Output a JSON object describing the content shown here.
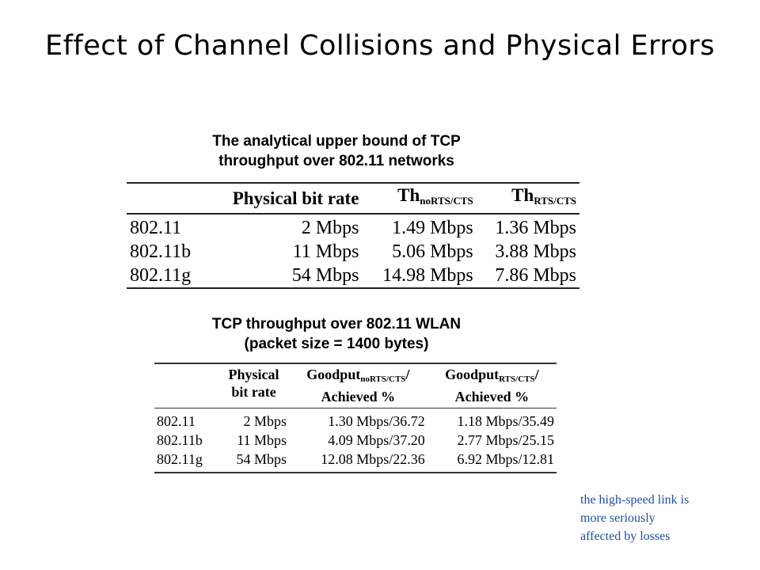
{
  "slide": {
    "title": "Effect of Channel Collisions and Physical Errors"
  },
  "table1": {
    "caption_lines": [
      "The analytical upper bound of TCP",
      "throughput over 802.11 networks"
    ],
    "headers": {
      "rate": "Physical bit rate",
      "th_norts_main": "Th",
      "th_norts_sub": "noRTS/CTS",
      "th_rts_main": "Th",
      "th_rts_sub": "RTS/CTS"
    },
    "rows": [
      {
        "standard": "802.11",
        "rate": "2 Mbps",
        "th_norts": "1.49 Mbps",
        "th_rts": "1.36 Mbps"
      },
      {
        "standard": "802.11b",
        "rate": "11 Mbps",
        "th_norts": "5.06 Mbps",
        "th_rts": "3.88 Mbps"
      },
      {
        "standard": "802.11g",
        "rate": "54 Mbps",
        "th_norts": "14.98 Mbps",
        "th_rts": "7.86 Mbps"
      }
    ]
  },
  "table2": {
    "caption_lines": [
      "TCP throughput over 802.11 WLAN",
      "(packet size = 1400 bytes)"
    ],
    "headers": {
      "rate_line1": "Physical",
      "rate_line2": "bit rate",
      "gp_norts_main": "Goodput",
      "gp_norts_sub": "noRTS/CTS",
      "gp_norts_slash": "/",
      "gp_norts_line2": "Achieved %",
      "gp_rts_main": "Goodput",
      "gp_rts_sub": "RTS/CTS",
      "gp_rts_slash": "/",
      "gp_rts_line2": "Achieved %"
    },
    "rows": [
      {
        "standard": "802.11",
        "rate": "2 Mbps",
        "gp_norts": "1.30 Mbps/36.72",
        "gp_rts": "1.18 Mbps/35.49"
      },
      {
        "standard": "802.11b",
        "rate": "11 Mbps",
        "gp_norts": "4.09 Mbps/37.20",
        "gp_rts": "2.77 Mbps/25.15"
      },
      {
        "standard": "802.11g",
        "rate": "54 Mbps",
        "gp_norts": "12.08 Mbps/22.36",
        "gp_rts": "6.92 Mbps/12.81"
      }
    ]
  },
  "note": {
    "lines": [
      "the high-speed link is",
      "more seriously",
      "affected by losses"
    ],
    "color": "#1f4e9c"
  }
}
